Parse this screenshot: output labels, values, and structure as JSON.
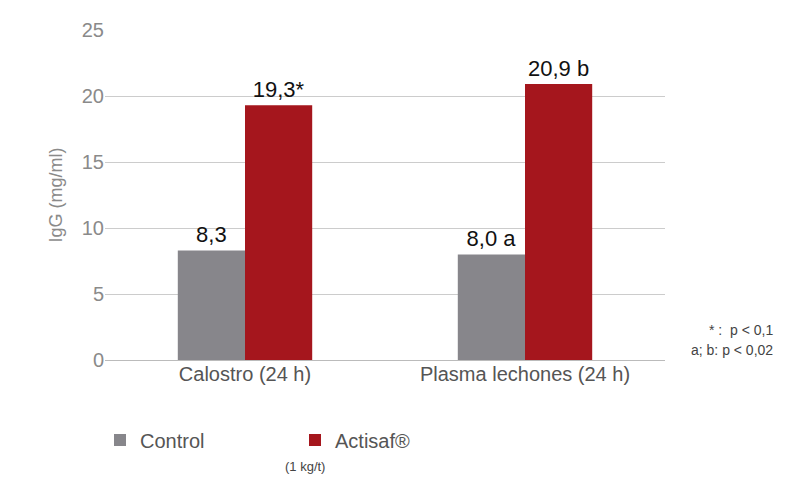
{
  "chart_data": {
    "type": "bar",
    "categories": [
      "Calostro (24 h)",
      "Plasma lechones (24 h)"
    ],
    "series": [
      {
        "name": "Control",
        "color": "#87868b",
        "values": [
          8.3,
          8.0
        ],
        "value_labels": [
          "8,3",
          "8,0 a"
        ]
      },
      {
        "name": "Actisaf®",
        "color": "#a5161d",
        "values": [
          19.3,
          20.9
        ],
        "value_labels": [
          "19,3*",
          "20,9 b"
        ]
      }
    ],
    "ylabel": "IgG (mg/ml)",
    "ylim": [
      0,
      25
    ],
    "yticks": [
      0,
      5,
      10,
      15,
      20,
      25
    ],
    "grid": true,
    "legend": "bottom",
    "data_labels": true,
    "annotations": [
      "(1 kg/t)",
      "* :  p < 0,1",
      "a; b: p < 0,02"
    ]
  }
}
